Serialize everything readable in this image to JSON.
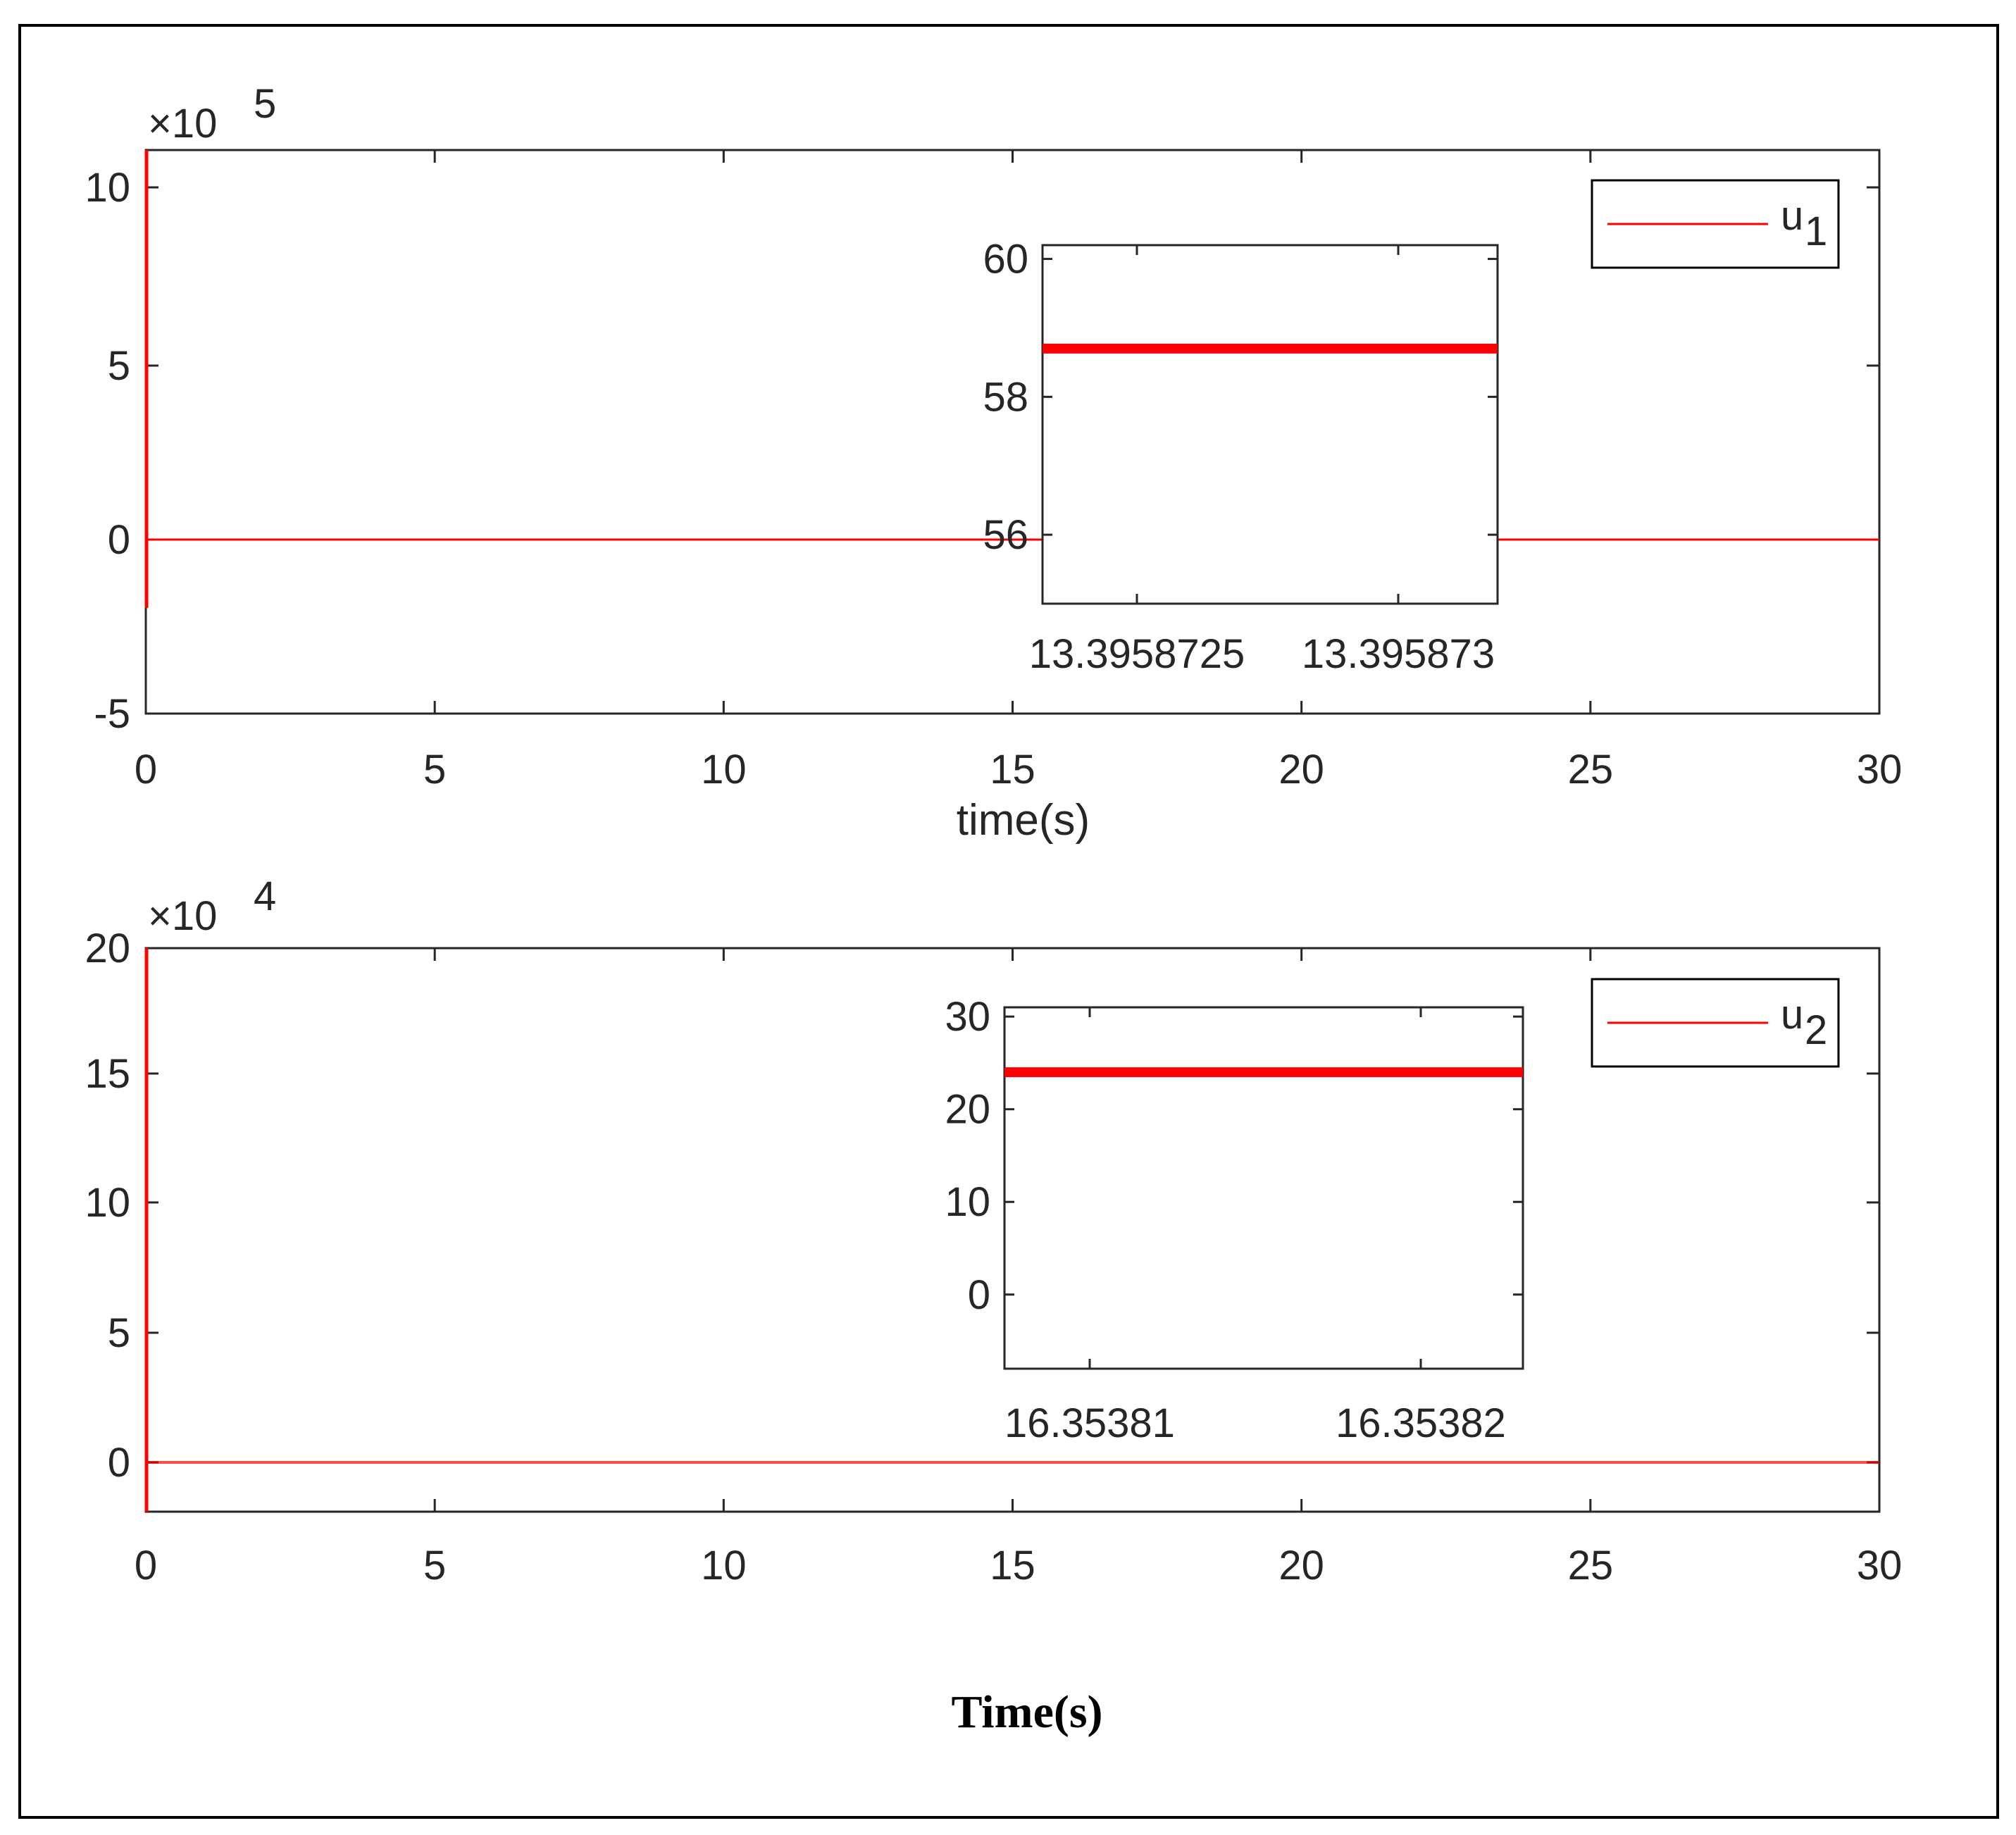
{
  "colors": {
    "series": "#ff0000",
    "axis": "#262626",
    "frame": "#000000"
  },
  "chart_data": [
    {
      "type": "line",
      "xlabel": "time(s)",
      "ylabel": "",
      "xlim": [
        0,
        30
      ],
      "ylim": [
        -5,
        11
      ],
      "xticks": [
        "0",
        "5",
        "10",
        "15",
        "20",
        "25",
        "30"
      ],
      "yticks": [
        "-5",
        "0",
        "5",
        "10"
      ],
      "exponent": {
        "base": "10",
        "power": "5"
      },
      "legend": {
        "entries": [
          {
            "name": "u",
            "subscript": "1"
          }
        ],
        "position": "top-right"
      },
      "series": [
        {
          "name": "u1",
          "x": [
            0,
            0.01,
            0.02,
            0.05,
            30
          ],
          "y": [
            11,
            -2,
            0,
            0,
            0
          ],
          "units_note": "x10^5"
        }
      ],
      "inset": {
        "type": "line",
        "xticks": [
          "13.3958725",
          "13.395873"
        ],
        "yticks": [
          "60",
          "58",
          "56"
        ],
        "ylim": [
          55,
          60.2
        ],
        "series": [
          {
            "name": "u1",
            "x": [
              0,
              1
            ],
            "y": [
              58.7,
              58.7
            ]
          }
        ]
      }
    },
    {
      "type": "line",
      "xlabel": "",
      "ylabel": "",
      "xlim": [
        0,
        30
      ],
      "ylim": [
        -2,
        20
      ],
      "xticks": [
        "0",
        "5",
        "10",
        "15",
        "20",
        "25",
        "30"
      ],
      "yticks": [
        "0",
        "5",
        "10",
        "15",
        "20"
      ],
      "exponent": {
        "base": "10",
        "power": "4"
      },
      "legend": {
        "entries": [
          {
            "name": "u",
            "subscript": "2"
          }
        ],
        "position": "top-right"
      },
      "series": [
        {
          "name": "u2",
          "x": [
            0,
            0.01,
            0.02,
            0.05,
            30
          ],
          "y": [
            20,
            -2,
            0,
            0,
            0
          ],
          "units_note": "x10^4"
        }
      ],
      "inset": {
        "type": "line",
        "xticks": [
          "16.35381",
          "16.35382"
        ],
        "yticks": [
          "30",
          "20",
          "10",
          "0"
        ],
        "ylim": [
          -8,
          31
        ],
        "series": [
          {
            "name": "u2",
            "x": [
              0,
              1
            ],
            "y": [
              24,
              24
            ]
          }
        ]
      }
    }
  ],
  "figure": {
    "bottom_label": "Time(s)"
  }
}
